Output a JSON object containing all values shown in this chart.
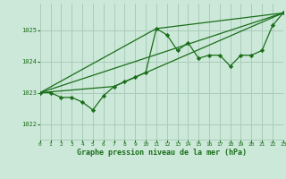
{
  "bg_color": "#cce8d8",
  "grid_color": "#aaccbb",
  "line_color": "#1a6e1a",
  "marker_color": "#1a6e1a",
  "xlabel": "Graphe pression niveau de la mer (hPa)",
  "xlim": [
    0,
    23
  ],
  "ylim": [
    1021.5,
    1025.85
  ],
  "yticks": [
    1022,
    1023,
    1024,
    1025
  ],
  "xticks": [
    0,
    1,
    2,
    3,
    4,
    5,
    6,
    7,
    8,
    9,
    10,
    11,
    12,
    13,
    14,
    15,
    16,
    17,
    18,
    19,
    20,
    21,
    22,
    23
  ],
  "line1_x": [
    0,
    1,
    2,
    3,
    4,
    5,
    6,
    7,
    8,
    9,
    10,
    11,
    12,
    13,
    14,
    15,
    16,
    17,
    18,
    19,
    20,
    21,
    22,
    23
  ],
  "line1_y": [
    1023.0,
    1023.0,
    1022.85,
    1022.85,
    1022.7,
    1022.45,
    1022.9,
    1023.2,
    1023.35,
    1023.5,
    1023.65,
    1025.05,
    1024.85,
    1024.35,
    1024.6,
    1024.1,
    1024.2,
    1024.2,
    1023.85,
    1024.2,
    1024.2,
    1024.35,
    1025.15,
    1025.55
  ],
  "line2_x": [
    0,
    23
  ],
  "line2_y": [
    1023.0,
    1025.55
  ],
  "line3_x": [
    0,
    7,
    23
  ],
  "line3_y": [
    1023.0,
    1023.2,
    1025.55
  ],
  "line4_x": [
    0,
    11,
    23
  ],
  "line4_y": [
    1023.0,
    1025.05,
    1025.55
  ]
}
